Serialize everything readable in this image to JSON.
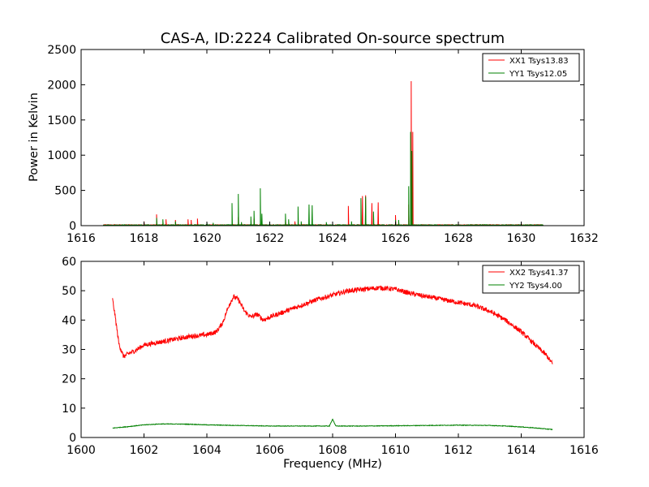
{
  "chart_data": [
    {
      "type": "line",
      "title": "CAS-A, ID:2224 Calibrated On-source spectrum",
      "xlabel": "",
      "ylabel": "Power in Kelvin",
      "xlim": [
        1616,
        1632
      ],
      "ylim": [
        0,
        2500
      ],
      "xticks": [
        1616,
        1618,
        1620,
        1622,
        1624,
        1626,
        1628,
        1630,
        1632
      ],
      "yticks": [
        0,
        500,
        1000,
        1500,
        2000,
        2500
      ],
      "legend_position": "top-right",
      "series": [
        {
          "name": "XX1 Tsys13.83",
          "color": "#ff0000",
          "baseline": 5,
          "x_range": [
            1616.7,
            1630.7
          ],
          "spikes": [
            [
              1618.0,
              60
            ],
            [
              1618.4,
              160
            ],
            [
              1618.7,
              90
            ],
            [
              1619.0,
              80
            ],
            [
              1619.4,
              90
            ],
            [
              1619.5,
              80
            ],
            [
              1619.7,
              100
            ],
            [
              1621.0,
              120
            ],
            [
              1621.5,
              100
            ],
            [
              1622.5,
              80
            ],
            [
              1622.8,
              60
            ],
            [
              1624.5,
              280
            ],
            [
              1624.95,
              420
            ],
            [
              1625.05,
              430
            ],
            [
              1625.25,
              320
            ],
            [
              1625.45,
              330
            ],
            [
              1626.0,
              150
            ],
            [
              1626.42,
              300
            ],
            [
              1626.5,
              2050
            ],
            [
              1626.55,
              1330
            ]
          ]
        },
        {
          "name": "YY1 Tsys12.05",
          "color": "#008000",
          "baseline": 4,
          "x_range": [
            1616.7,
            1630.7
          ],
          "spikes": [
            [
              1618.4,
              110
            ],
            [
              1618.6,
              90
            ],
            [
              1619.0,
              60
            ],
            [
              1620.0,
              50
            ],
            [
              1620.2,
              40
            ],
            [
              1620.8,
              320
            ],
            [
              1621.0,
              450
            ],
            [
              1621.1,
              50
            ],
            [
              1621.4,
              130
            ],
            [
              1621.5,
              210
            ],
            [
              1621.7,
              530
            ],
            [
              1621.75,
              170
            ],
            [
              1622.5,
              170
            ],
            [
              1622.6,
              90
            ],
            [
              1622.9,
              270
            ],
            [
              1623.0,
              60
            ],
            [
              1623.25,
              300
            ],
            [
              1623.35,
              290
            ],
            [
              1623.8,
              50
            ],
            [
              1624.6,
              60
            ],
            [
              1624.9,
              390
            ],
            [
              1625.05,
              410
            ],
            [
              1625.3,
              200
            ],
            [
              1626.0,
              80
            ],
            [
              1626.1,
              80
            ],
            [
              1626.42,
              560
            ],
            [
              1626.48,
              1330
            ],
            [
              1626.52,
              1060
            ]
          ]
        }
      ]
    },
    {
      "type": "line",
      "title": "",
      "xlabel": "Frequency (MHz)",
      "ylabel": "",
      "xlim": [
        1600,
        1616
      ],
      "ylim": [
        0,
        60
      ],
      "xticks": [
        1600,
        1602,
        1604,
        1606,
        1608,
        1610,
        1612,
        1614,
        1616
      ],
      "yticks": [
        0,
        10,
        20,
        30,
        40,
        50,
        60
      ],
      "legend_position": "top-right",
      "series": [
        {
          "name": "XX2 Tsys41.37",
          "color": "#ff0000",
          "noise": 0.8,
          "x": [
            1601.0,
            1601.1,
            1601.2,
            1601.35,
            1601.5,
            1601.7,
            1602.0,
            1602.5,
            1603.0,
            1603.5,
            1604.0,
            1604.3,
            1604.5,
            1604.7,
            1604.85,
            1605.0,
            1605.2,
            1605.4,
            1605.6,
            1605.8,
            1606.0,
            1606.5,
            1607.0,
            1607.5,
            1608.0,
            1608.5,
            1609.0,
            1609.5,
            1610.0,
            1610.5,
            1611.0,
            1611.5,
            1612.0,
            1612.5,
            1613.0,
            1613.5,
            1614.0,
            1614.5,
            1614.8,
            1615.0
          ],
          "y": [
            47,
            40,
            32,
            27.5,
            28.5,
            29.5,
            31.5,
            32.5,
            33.5,
            34.5,
            35,
            36,
            39,
            45,
            48,
            47,
            43,
            41,
            42,
            40,
            41,
            43,
            45,
            47,
            48.5,
            50,
            50.5,
            51,
            50.5,
            49,
            48,
            47,
            46,
            45,
            43,
            40,
            36,
            31,
            28,
            25
          ]
        },
        {
          "name": "YY2 Tsys4.00",
          "color": "#008000",
          "noise": 0.1,
          "x": [
            1601.0,
            1601.5,
            1602.0,
            1602.5,
            1603.0,
            1603.5,
            1604.0,
            1605.0,
            1606.0,
            1607.0,
            1607.9,
            1608.0,
            1608.1,
            1609.0,
            1610.0,
            1611.0,
            1612.0,
            1613.0,
            1613.5,
            1614.0,
            1614.5,
            1615.0
          ],
          "y": [
            3.2,
            3.7,
            4.3,
            4.6,
            4.6,
            4.5,
            4.3,
            4.1,
            3.9,
            3.9,
            3.9,
            6.3,
            3.9,
            3.9,
            4.0,
            4.1,
            4.2,
            4.1,
            3.9,
            3.6,
            3.2,
            2.7
          ]
        }
      ]
    }
  ]
}
